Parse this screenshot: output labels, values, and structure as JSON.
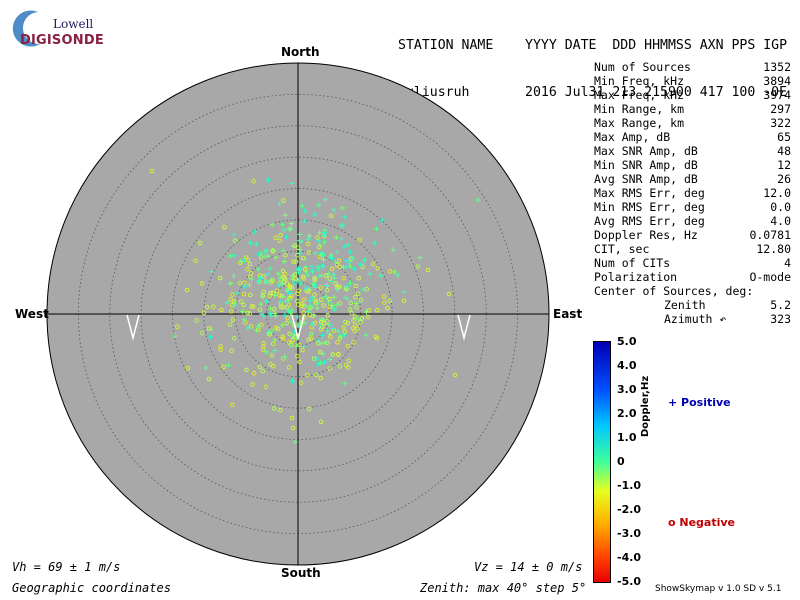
{
  "logo": {
    "line1": "Lowell",
    "line2": "DIGISONDE"
  },
  "header": {
    "line1": "STATION NAME    YYYY DATE  DDD HHMMSS AXN PPS IGP",
    "line2": "Juliusruh       2016 Jul31 213 215900 417 100 -0E"
  },
  "directions": {
    "north": "North",
    "south": "South",
    "east": "East",
    "west": "West"
  },
  "stats": [
    {
      "label": "Num of Sources",
      "value": "1352"
    },
    {
      "label": "Min Freq, kHz",
      "value": "3894"
    },
    {
      "label": "Max Freq, kHz",
      "value": "3974"
    },
    {
      "label": "Min Range, km",
      "value": "297"
    },
    {
      "label": "Max Range, km",
      "value": "322"
    },
    {
      "label": "Max Amp, dB",
      "value": "65"
    },
    {
      "label": "Max SNR Amp, dB",
      "value": "48"
    },
    {
      "label": "Min SNR Amp, dB",
      "value": "12"
    },
    {
      "label": "Avg SNR Amp, dB",
      "value": "26"
    },
    {
      "label": "Max RMS Err, deg",
      "value": "12.0"
    },
    {
      "label": "Min RMS Err, deg",
      "value": "0.0"
    },
    {
      "label": "Avg RMS Err, deg",
      "value": "4.0"
    },
    {
      "label": "Doppler Res, Hz",
      "value": "0.0781"
    },
    {
      "label": "CIT, sec",
      "value": "12.80"
    },
    {
      "label": "Num of CITs",
      "value": "4"
    },
    {
      "label": "Polarization",
      "value": "O-mode"
    },
    {
      "label": "Center of Sources, deg:",
      "value": ""
    },
    {
      "label": "Zenith",
      "value": "5.2",
      "indent": true
    },
    {
      "label": "Azimuth ↶",
      "value": "323",
      "indent": true
    }
  ],
  "colorbar": {
    "title": "Doppler,Hz",
    "ticks": [
      "5.0",
      "4.0",
      "3.0",
      "2.0",
      "1.0",
      "0",
      "-1.0",
      "-2.0",
      "-3.0",
      "-4.0",
      "-5.0"
    ],
    "positive_label": "+ Positive",
    "negative_label": "o Negative"
  },
  "footer": {
    "vh": "Vh = 69 ± 1 m/s",
    "vz": "Vz = 14 ± 0 m/s",
    "coords": "Geographic coordinates",
    "zenith": "Zenith: max 40°  step 5°",
    "version": "ShowSkymap v 1.0   SD v 5.1"
  },
  "chart_data": {
    "type": "scatter",
    "title": "",
    "zenith_max_deg": 40,
    "zenith_step_deg": 5,
    "num_sources": 1352,
    "center_zenith_deg": 5.2,
    "center_azimuth_deg": 323,
    "vh_ms": 69,
    "vz_ms": 14,
    "doppler_range_hz": [
      -5.0,
      5.0
    ],
    "series": [
      {
        "name": "Positive",
        "marker": "+",
        "doppler_hz": 0.3
      },
      {
        "name": "Negative",
        "marker": "o",
        "doppler_hz": -0.5
      }
    ],
    "colors": {
      "background": "#a8a8a8",
      "positive_points": "#5eff8a",
      "negative_points": "#d2f52a"
    }
  }
}
